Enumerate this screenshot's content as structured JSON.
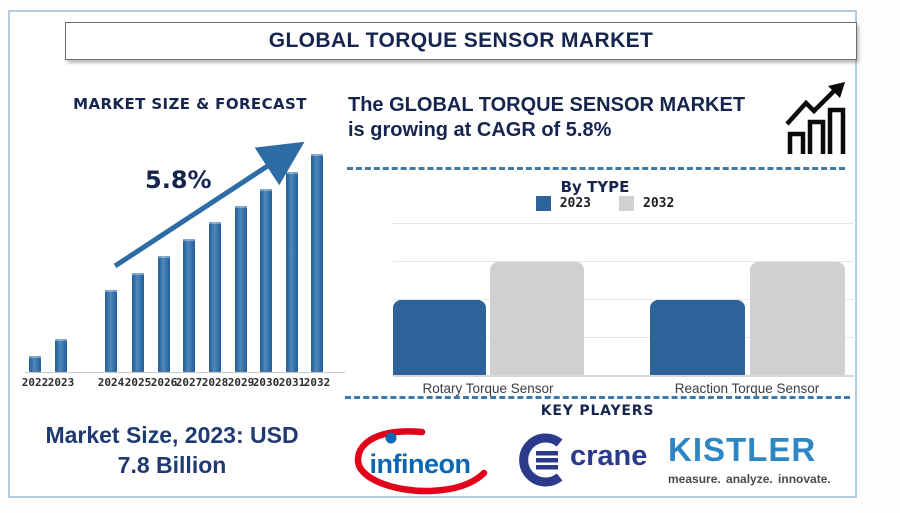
{
  "title_bar": {
    "title": "GLOBAL TORQUE SENSOR MARKET"
  },
  "forecast_section": {
    "heading": "MARKET SIZE & FORECAST",
    "cagr_annotation": "5.8%"
  },
  "headline": {
    "line1": "The GLOBAL TORQUE SENSOR MARKET",
    "line2": "is growing at CAGR of 5.8%"
  },
  "by_type_section": {
    "heading": "By TYPE"
  },
  "market_size_note": {
    "line1": "Market Size, 2023: USD",
    "line2": "7.8 Billion"
  },
  "key_players_section": {
    "heading": "KEY PLAYERS",
    "logos": [
      {
        "name": "infineon",
        "label": "infineon"
      },
      {
        "name": "crane",
        "label": "crane"
      },
      {
        "name": "kistler",
        "label": "KISTLER",
        "tagline": "measure. analyze. innovate."
      }
    ]
  },
  "colors": {
    "navy_text": "#16254e",
    "market_size_text": "#1f3a70",
    "forecast_bar_blue": "#2e6ca5",
    "bytype_bar_blue": "#2d6399",
    "bytype_bar_gray": "#d0d0d0",
    "trend_arrow_blue": "#2e6ca5",
    "dashed_separator": "#3e7aa9",
    "frame_border": "#b5cbde",
    "infineon_blue": "#0b67b2",
    "infineon_red": "#e2001a",
    "crane_navy": "#2c3a8c",
    "kistler_blue": "#2e86c4"
  },
  "chart_data": [
    {
      "type": "bar",
      "title": "MARKET SIZE & FORECAST",
      "categories": [
        "2022",
        "2023",
        "2024",
        "2025",
        "2026",
        "2027",
        "2028",
        "2029",
        "2030",
        "2031",
        "2032"
      ],
      "values": [
        16,
        33,
        82,
        99,
        116,
        133,
        150,
        166,
        183,
        200,
        218
      ],
      "values_unit": "relative bar height (no numeric axis shown)",
      "annotation": "5.8%",
      "bar_color": "#2e6ca5",
      "market_size_2023_usd_billion": 7.8,
      "cagr_percent": 5.8,
      "grid": false,
      "legend_position": "none"
    },
    {
      "type": "bar",
      "title": "By TYPE",
      "categories": [
        "Rotary Torque Sensor",
        "Reaction Torque Sensor"
      ],
      "series": [
        {
          "name": "2023",
          "color": "#2d6399",
          "values": [
            2,
            2
          ]
        },
        {
          "name": "2032",
          "color": "#d0d0d0",
          "values": [
            3,
            3
          ]
        }
      ],
      "values_unit": "gridline units (no numeric axis shown)",
      "grid": true,
      "legend_position": "top"
    }
  ]
}
